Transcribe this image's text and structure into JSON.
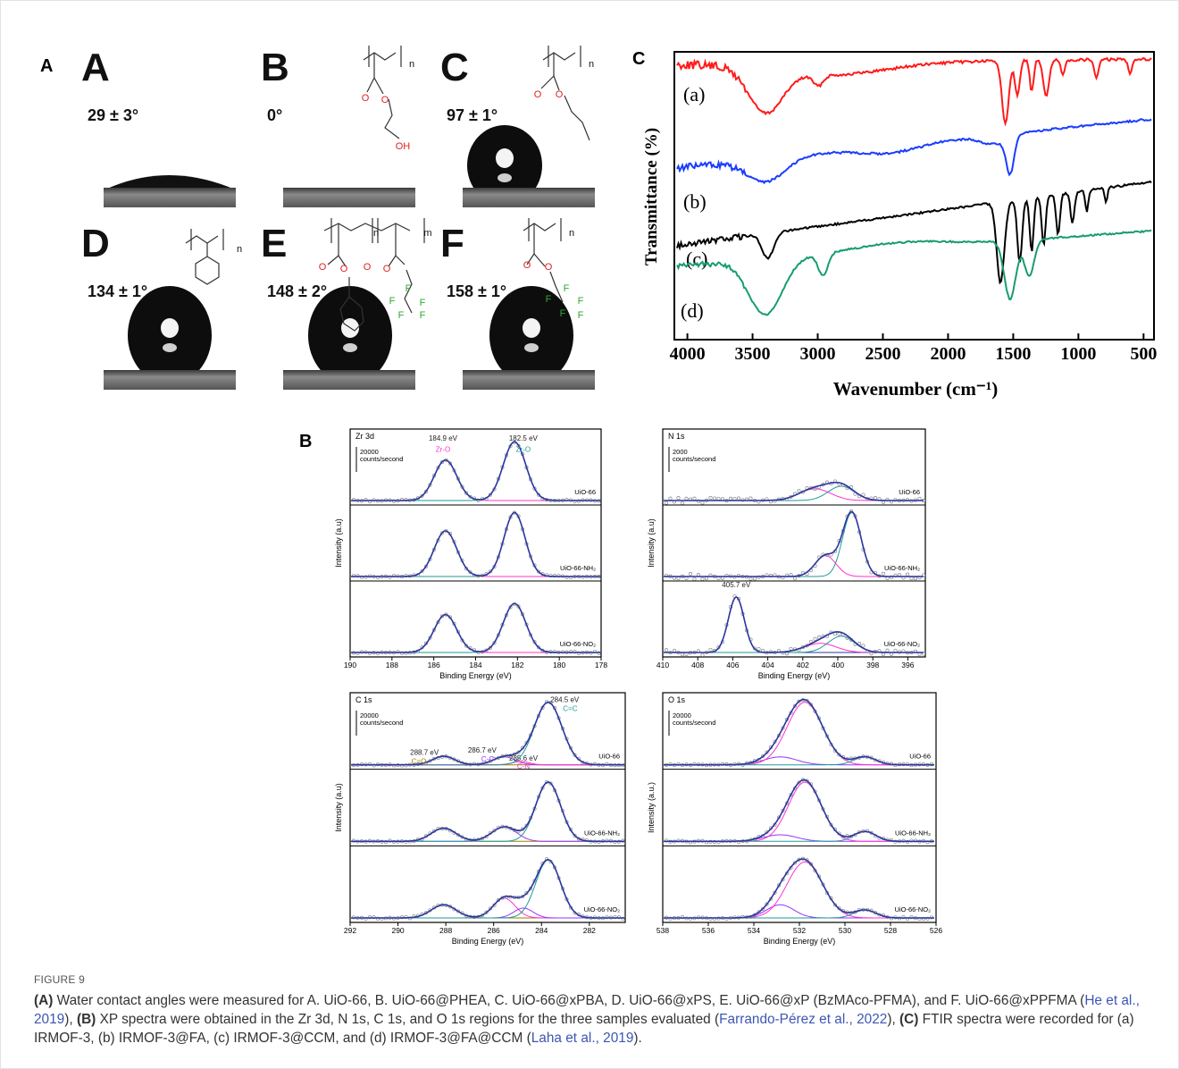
{
  "figure": {
    "panel_a": {
      "label": "A",
      "cells": [
        {
          "letter": "A",
          "angle": "29 ± 3°"
        },
        {
          "letter": "B",
          "angle": "0°",
          "structure": [
            "n",
            "O",
            "O",
            "OH"
          ]
        },
        {
          "letter": "C",
          "angle": "97 ± 1°",
          "structure": [
            "n",
            "O",
            "O"
          ]
        },
        {
          "letter": "D",
          "angle": "134 ± 1°",
          "structure": [
            "n"
          ]
        },
        {
          "letter": "E",
          "angle": "148 ± 2°",
          "structure": [
            "n",
            "m",
            "O",
            "O",
            "O",
            "O",
            "F",
            "F",
            "F",
            "F",
            "F"
          ]
        },
        {
          "letter": "F",
          "angle": "158 ± 1°",
          "structure": [
            "n",
            "O",
            "O",
            "F",
            "F",
            "F",
            "F",
            "F"
          ]
        }
      ]
    },
    "panel_b": {
      "label": "B",
      "plots": [
        {
          "region": "Zr 3d",
          "type": "line",
          "xlabel": "Binding Energy (eV)",
          "ylabel": "Intensity (a.u)",
          "scale": [
            "20000",
            "counts/second"
          ],
          "xlim": [
            190,
            178
          ],
          "xticks": [
            190,
            188,
            186,
            184,
            182,
            180,
            178
          ],
          "samples": [
            "UiO-66",
            "UiO-66-NH₂",
            "UiO-66-NO₂"
          ],
          "annotations": [
            {
              "text": "184.9 eV",
              "color": "#222222"
            },
            {
              "text": "182.5 eV",
              "color": "#222222"
            },
            {
              "text": "Zr-O",
              "color": "#ff33cc"
            },
            {
              "text": "Zr-O",
              "color": "#1f9a9a"
            }
          ]
        },
        {
          "region": "N 1s",
          "type": "line",
          "xlabel": "Binding Energy (eV)",
          "ylabel": "Intensity (a.u)",
          "scale": [
            "2000",
            "counts/second"
          ],
          "xlim": [
            410,
            395
          ],
          "xticks": [
            410,
            408,
            406,
            404,
            402,
            400,
            398,
            396
          ],
          "samples": [
            "UiO-66",
            "UiO-66-NH₂",
            "UiO-66-NO₂"
          ],
          "annotations": [
            {
              "text": "405.7 eV",
              "color": "#222222"
            }
          ]
        },
        {
          "region": "C 1s",
          "type": "line",
          "xlabel": "Binding Energy (eV)",
          "ylabel": "Intensity (a.u)",
          "scale": [
            "20000",
            "counts/second"
          ],
          "xlim": [
            292,
            280.5
          ],
          "xticks": [
            292,
            290,
            288,
            286,
            284,
            282
          ],
          "samples": [
            "UiO-66",
            "UiO-66-NH₂",
            "UiO-66-NO₂"
          ],
          "annotations": [
            {
              "text": "288.7 eV",
              "color": "#222222"
            },
            {
              "text": "C=O",
              "color": "#a08000"
            },
            {
              "text": "286.7 eV",
              "color": "#222222"
            },
            {
              "text": "C-C",
              "color": "#9933ff"
            },
            {
              "text": "285.6 eV",
              "color": "#222222"
            },
            {
              "text": "C-N",
              "color": "#ff33cc"
            },
            {
              "text": "284.5 eV",
              "color": "#222222"
            },
            {
              "text": "C=C",
              "color": "#1f9a9a"
            }
          ]
        },
        {
          "region": "O 1s",
          "type": "line",
          "xlabel": "Binding Energy (eV)",
          "ylabel": "Intensity (a.u.)",
          "scale": [
            "20000",
            "counts/second"
          ],
          "xlim": [
            538,
            526
          ],
          "xticks": [
            538,
            536,
            534,
            532,
            530,
            528,
            526
          ],
          "samples": [
            "UiO-66",
            "UiO-66-NH₂",
            "UiO-66-NO₂"
          ]
        }
      ]
    },
    "panel_c": {
      "label": "C",
      "type": "line",
      "xlabel": "Wavenumber (cm⁻¹)",
      "ylabel": "Transmittance (%)",
      "xlim": [
        4100,
        420
      ],
      "xticks": [
        4000,
        3500,
        3000,
        2500,
        2000,
        1500,
        1000,
        500
      ],
      "series": [
        {
          "name": "(a)",
          "color": "#ff1a1a"
        },
        {
          "name": "(b)",
          "color": "#1a3cff"
        },
        {
          "name": "(c)",
          "color": "#000000"
        },
        {
          "name": "(d)",
          "color": "#169c72"
        }
      ]
    },
    "caption": {
      "number": "FIGURE 9",
      "runs": [
        {
          "text": "(A)",
          "bold": true
        },
        {
          "text": " Water contact angles were measured for A. UiO-66, B. UiO-66@PHEA, C. UiO-66@xPBA, D. UiO-66@xPS, E. UiO-66@xP (BzMAco-PFMA), and F. UiO-66@xPPFMA ("
        },
        {
          "text": "He et al., 2019",
          "link": true
        },
        {
          "text": "), "
        },
        {
          "text": "(B)",
          "bold": true
        },
        {
          "text": " XP spectra were obtained in the Zr 3d, N 1s, C 1s, and O 1s regions for the three samples evaluated ("
        },
        {
          "text": "Farrando-Pérez et al., 2022",
          "link": true
        },
        {
          "text": "), "
        },
        {
          "text": "(C)",
          "bold": true
        },
        {
          "text": " FTIR spectra were recorded for (a) IRMOF-3, (b) IRMOF-3@FA, (c) IRMOF-3@CCM, and (d) IRMOF-3@FA@CCM ("
        },
        {
          "text": "Laha et al., 2019",
          "link": true
        },
        {
          "text": ")."
        }
      ]
    }
  }
}
